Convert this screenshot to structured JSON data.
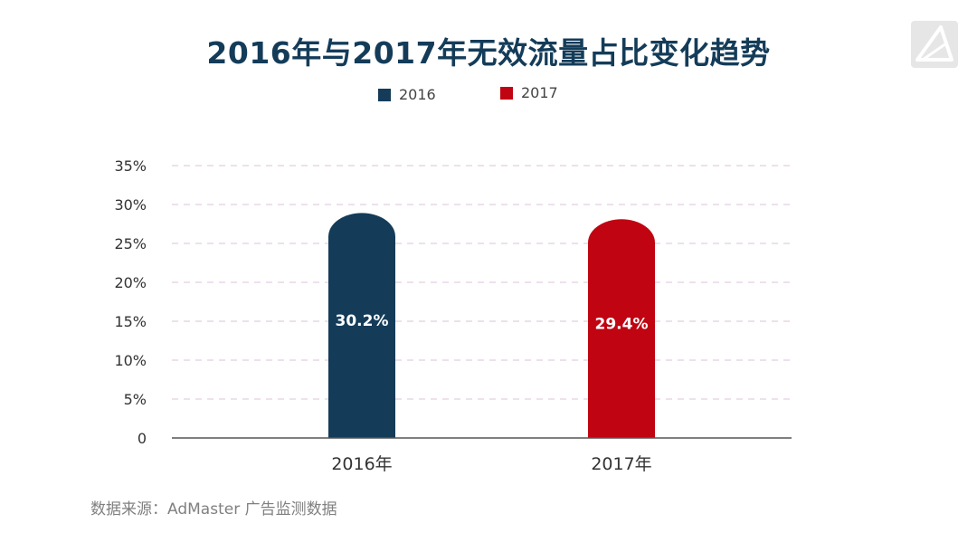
{
  "title": "2016年与2017年无效流量占比变化趋势",
  "source": "数据来源：AdMaster 广告监测数据",
  "colors": {
    "series_2016": "#143c59",
    "series_2017": "#c00412",
    "title": "#143c59"
  },
  "logo_icon": "triangle-logo-icon",
  "chart_data": {
    "type": "bar",
    "categories": [
      "2016年",
      "2017年"
    ],
    "values": [
      30.2,
      29.4
    ],
    "data_labels": [
      "30.2%",
      "29.4%"
    ],
    "series": [
      {
        "name": "2016",
        "values": [
          30.2,
          null
        ]
      },
      {
        "name": "2017",
        "values": [
          null,
          29.4
        ]
      }
    ],
    "ylim": [
      0,
      35
    ],
    "yticks": [
      0,
      5,
      10,
      15,
      20,
      25,
      30,
      35
    ],
    "ytick_labels": [
      "0",
      "5%",
      "10%",
      "15%",
      "20%",
      "25%",
      "30%",
      "35%"
    ],
    "grid": true,
    "legend": "top-center",
    "xlabel": "",
    "ylabel": ""
  }
}
